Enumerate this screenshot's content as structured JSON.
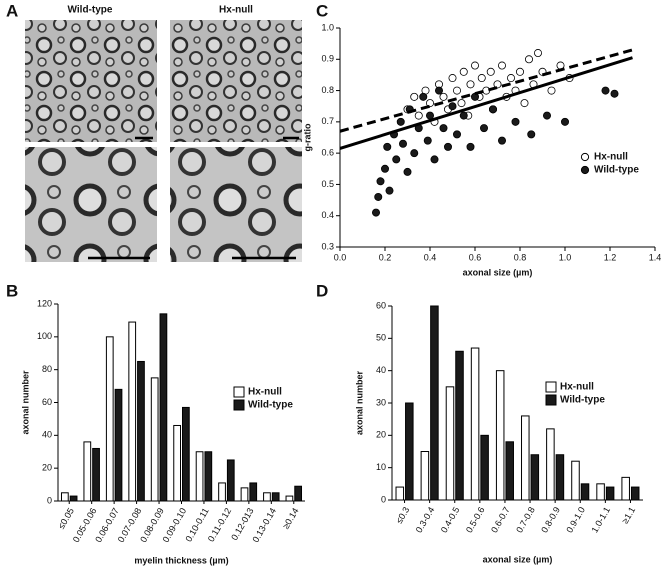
{
  "micrographs": {
    "panel_label": "A",
    "labels": [
      "Wild-type",
      "Hx-null"
    ]
  },
  "chart_data": [
    {
      "type": "bar",
      "panel_label": "B",
      "x_label": "myelin thickness (µm)",
      "y_label": "axonal number",
      "categories": [
        "≤0.05",
        "0.05-0.06",
        "0.06-0.07",
        "0.07-0.08",
        "0.08-0.09",
        "0.09-0.10",
        "0.10-0.11",
        "0.11-0.12",
        "0.12-013",
        "0.13-0.14",
        "≥0.14"
      ],
      "series": [
        {
          "name": "Hx-null",
          "color": "#ffffff",
          "values": [
            5,
            36,
            100,
            109,
            75,
            46,
            30,
            11,
            8,
            5,
            3
          ]
        },
        {
          "name": "Wild-type",
          "color": "#1a1a1a",
          "values": [
            3,
            32,
            68,
            85,
            114,
            57,
            30,
            25,
            11,
            5,
            9
          ]
        }
      ],
      "ylim": [
        0,
        120
      ],
      "yticks": [
        0,
        20,
        40,
        60,
        80,
        100,
        120
      ]
    },
    {
      "type": "scatter",
      "panel_label": "C",
      "x_label": "axonal size (µm)",
      "y_label": "g-ratio",
      "series": [
        {
          "name": "Hx-null",
          "color": "#ffffff",
          "x": [
            0.3,
            0.33,
            0.35,
            0.38,
            0.4,
            0.42,
            0.44,
            0.46,
            0.48,
            0.5,
            0.52,
            0.54,
            0.55,
            0.57,
            0.58,
            0.6,
            0.62,
            0.63,
            0.65,
            0.67,
            0.68,
            0.7,
            0.72,
            0.74,
            0.76,
            0.78,
            0.8,
            0.82,
            0.84,
            0.86,
            0.88,
            0.9,
            0.94,
            0.98,
            1.02
          ],
          "y": [
            0.74,
            0.78,
            0.72,
            0.8,
            0.76,
            0.7,
            0.82,
            0.78,
            0.74,
            0.84,
            0.8,
            0.76,
            0.86,
            0.72,
            0.82,
            0.88,
            0.78,
            0.84,
            0.8,
            0.86,
            0.74,
            0.82,
            0.88,
            0.78,
            0.84,
            0.8,
            0.86,
            0.76,
            0.9,
            0.82,
            0.92,
            0.86,
            0.8,
            0.88,
            0.84
          ],
          "fit": {
            "x": [
              0,
              1.3
            ],
            "y": [
              0.67,
              0.93
            ],
            "dash": true
          }
        },
        {
          "name": "Wild-type",
          "color": "#1a1a1a",
          "x": [
            0.16,
            0.17,
            0.18,
            0.2,
            0.21,
            0.22,
            0.24,
            0.25,
            0.27,
            0.28,
            0.3,
            0.31,
            0.33,
            0.35,
            0.37,
            0.39,
            0.4,
            0.42,
            0.44,
            0.46,
            0.48,
            0.5,
            0.52,
            0.55,
            0.58,
            0.6,
            0.64,
            0.68,
            0.72,
            0.78,
            0.85,
            0.92,
            1.0,
            1.18,
            1.22
          ],
          "y": [
            0.41,
            0.46,
            0.51,
            0.55,
            0.62,
            0.48,
            0.66,
            0.58,
            0.7,
            0.63,
            0.54,
            0.74,
            0.6,
            0.68,
            0.78,
            0.64,
            0.72,
            0.58,
            0.8,
            0.68,
            0.62,
            0.75,
            0.66,
            0.72,
            0.62,
            0.78,
            0.68,
            0.74,
            0.64,
            0.7,
            0.66,
            0.72,
            0.7,
            0.8,
            0.79
          ],
          "fit": {
            "x": [
              0,
              1.3
            ],
            "y": [
              0.615,
              0.905
            ],
            "dash": false
          }
        }
      ],
      "xlim": [
        0,
        1.4
      ],
      "xticks": [
        {
          "value": 0,
          "label": "0.0"
        },
        0.2,
        0.4,
        0.6,
        0.8,
        {
          "value": 1,
          "label": "1.0"
        },
        1.2,
        1.4
      ],
      "ylim": [
        0.3,
        1.0
      ],
      "yticks": [
        0.3,
        0.4,
        0.5,
        0.6,
        0.7,
        0.8,
        0.9,
        {
          "value": 1,
          "label": "1.0"
        }
      ]
    },
    {
      "type": "bar",
      "panel_label": "D",
      "x_label": "axonal size (µm)",
      "y_label": "axonal number",
      "categories": [
        "≤0.3",
        "0.3-0.4",
        "0.4-0.5",
        "0.5-0.6",
        "0.6-0.7",
        "0.7-0.8",
        "0.8-0.9",
        "0.9-1.0",
        "1.0-1.1",
        "≥1.1"
      ],
      "series": [
        {
          "name": "Hx-null",
          "color": "#ffffff",
          "values": [
            4,
            15,
            35,
            47,
            40,
            26,
            22,
            12,
            5,
            7
          ]
        },
        {
          "name": "Wild-type",
          "color": "#1a1a1a",
          "values": [
            30,
            60,
            46,
            20,
            18,
            14,
            14,
            5,
            4,
            4
          ]
        }
      ],
      "ylim": [
        0,
        60
      ],
      "yticks": [
        0,
        10,
        20,
        30,
        40,
        50,
        60
      ]
    }
  ]
}
